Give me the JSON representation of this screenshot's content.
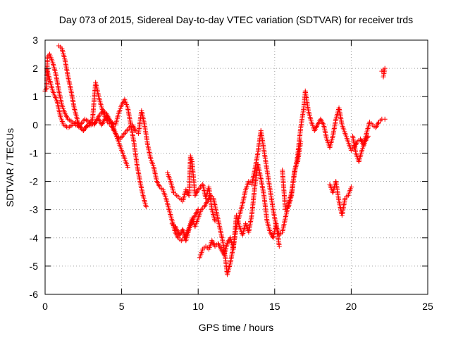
{
  "chart_data": {
    "type": "scatter",
    "title": "Day 073 of 2015, Sidereal Day-to-day VTEC variation (SDTVAR) for receiver trds",
    "xlabel": "GPS time / hours",
    "ylabel": "SDTVAR / TECUs",
    "xlim": [
      0,
      25
    ],
    "ylim": [
      -6,
      3
    ],
    "xticks": [
      0,
      5,
      10,
      15,
      20,
      25
    ],
    "yticks": [
      -6,
      -5,
      -4,
      -3,
      -2,
      -1,
      0,
      1,
      2,
      3
    ],
    "grid": true,
    "series": [
      {
        "name": "SDTVAR",
        "color": "#ff0000",
        "marker": "plus",
        "points": [
          [
            0.0,
            1.2
          ],
          [
            0.1,
            1.3
          ],
          [
            0.15,
            2.4
          ],
          [
            0.3,
            2.5
          ],
          [
            0.5,
            2.2
          ],
          [
            0.7,
            1.8
          ],
          [
            0.9,
            1.2
          ],
          [
            1.1,
            0.7
          ],
          [
            1.3,
            0.4
          ],
          [
            1.5,
            0.2
          ],
          [
            1.8,
            0.1
          ],
          [
            2.0,
            0.0
          ],
          [
            2.3,
            -0.1
          ],
          [
            2.5,
            -0.2
          ],
          [
            2.7,
            -0.05
          ],
          [
            3.0,
            0.0
          ],
          [
            3.3,
            0.1
          ],
          [
            3.5,
            0.2
          ],
          [
            3.7,
            0.0
          ],
          [
            4.0,
            0.3
          ],
          [
            4.3,
            0.1
          ],
          [
            4.6,
            0.0
          ],
          [
            4.8,
            0.4
          ],
          [
            5.0,
            0.7
          ],
          [
            5.2,
            0.9
          ],
          [
            5.4,
            0.6
          ],
          [
            5.6,
            0.0
          ],
          [
            5.8,
            -0.6
          ],
          [
            6.0,
            -1.4
          ],
          [
            6.2,
            -2.0
          ],
          [
            6.4,
            -2.5
          ],
          [
            6.6,
            -2.9
          ],
          [
            0.1,
            2.0
          ],
          [
            0.3,
            1.6
          ],
          [
            0.5,
            1.2
          ],
          [
            0.8,
            0.8
          ],
          [
            1.0,
            0.3
          ],
          [
            1.2,
            0.0
          ],
          [
            1.5,
            -0.1
          ],
          [
            1.8,
            0.0
          ],
          [
            2.0,
            0.1
          ],
          [
            2.3,
            0.0
          ],
          [
            2.6,
            0.2
          ],
          [
            2.9,
            0.1
          ],
          [
            3.2,
            0.0
          ],
          [
            3.5,
            0.3
          ],
          [
            3.8,
            0.5
          ],
          [
            4.0,
            0.4
          ],
          [
            4.2,
            0.2
          ],
          [
            4.4,
            0.0
          ],
          [
            4.6,
            -0.3
          ],
          [
            4.8,
            -0.6
          ],
          [
            5.0,
            -0.9
          ],
          [
            5.2,
            -1.2
          ],
          [
            5.4,
            -1.5
          ],
          [
            0.9,
            2.8
          ],
          [
            1.1,
            2.7
          ],
          [
            1.3,
            2.3
          ],
          [
            1.5,
            1.7
          ],
          [
            1.7,
            1.2
          ],
          [
            1.9,
            0.6
          ],
          [
            2.2,
            0.0
          ],
          [
            2.5,
            -0.2
          ],
          [
            2.8,
            0.0
          ],
          [
            3.1,
            0.2
          ],
          [
            3.3,
            1.5
          ],
          [
            3.5,
            1.0
          ],
          [
            3.7,
            0.6
          ],
          [
            3.9,
            0.3
          ],
          [
            4.1,
            0.1
          ],
          [
            4.3,
            0.0
          ],
          [
            4.5,
            -0.2
          ],
          [
            4.7,
            -0.4
          ],
          [
            4.9,
            -0.5
          ],
          [
            5.2,
            -0.3
          ],
          [
            5.5,
            -0.1
          ],
          [
            5.7,
            0.0
          ],
          [
            5.9,
            -0.2
          ],
          [
            6.1,
            -0.3
          ],
          [
            6.3,
            0.5
          ],
          [
            6.5,
            0.0
          ],
          [
            6.7,
            -0.7
          ],
          [
            6.9,
            -1.2
          ],
          [
            7.1,
            -1.5
          ],
          [
            7.3,
            -2.0
          ],
          [
            7.5,
            -2.2
          ],
          [
            7.7,
            -2.3
          ],
          [
            7.9,
            -2.6
          ],
          [
            8.1,
            -3.0
          ],
          [
            8.3,
            -3.4
          ],
          [
            8.5,
            -3.8
          ],
          [
            8.7,
            -4.0
          ],
          [
            8.9,
            -4.1
          ],
          [
            9.1,
            -4.0
          ],
          [
            9.3,
            -3.8
          ],
          [
            9.5,
            -3.5
          ],
          [
            9.6,
            -3.3
          ],
          [
            9.8,
            -3.6
          ],
          [
            10.0,
            -3.3
          ],
          [
            10.2,
            -3.0
          ],
          [
            10.4,
            -2.9
          ],
          [
            10.6,
            -2.7
          ],
          [
            10.8,
            -2.5
          ],
          [
            11.0,
            -2.6
          ],
          [
            11.2,
            -3.1
          ],
          [
            11.4,
            -3.6
          ],
          [
            11.6,
            -4.1
          ],
          [
            11.8,
            -4.8
          ],
          [
            11.9,
            -5.3
          ],
          [
            12.1,
            -4.9
          ],
          [
            12.3,
            -4.3
          ],
          [
            12.5,
            -3.6
          ],
          [
            12.7,
            -3.2
          ],
          [
            12.9,
            -2.8
          ],
          [
            13.1,
            -2.3
          ],
          [
            13.3,
            -2.0
          ],
          [
            13.5,
            -2.1
          ],
          [
            13.7,
            -1.6
          ],
          [
            13.9,
            -1.0
          ],
          [
            14.1,
            -0.2
          ],
          [
            14.3,
            -0.9
          ],
          [
            14.5,
            -1.6
          ],
          [
            14.7,
            -2.3
          ],
          [
            14.9,
            -3.0
          ],
          [
            15.1,
            -3.6
          ],
          [
            15.3,
            -3.9
          ],
          [
            15.5,
            -3.8
          ],
          [
            15.7,
            -3.3
          ],
          [
            15.9,
            -2.8
          ],
          [
            16.1,
            -2.4
          ],
          [
            16.3,
            -1.7
          ],
          [
            16.5,
            -1.1
          ],
          [
            16.7,
            -0.1
          ],
          [
            16.9,
            0.6
          ],
          [
            17.0,
            1.2
          ],
          [
            17.2,
            0.5
          ],
          [
            17.4,
            0.1
          ],
          [
            17.6,
            -0.2
          ],
          [
            17.8,
            0.0
          ],
          [
            18.0,
            0.2
          ],
          [
            18.2,
            0.0
          ],
          [
            18.4,
            -0.5
          ],
          [
            18.6,
            -0.8
          ],
          [
            18.8,
            -0.4
          ],
          [
            19.0,
            0.2
          ],
          [
            19.2,
            0.6
          ],
          [
            19.4,
            0.0
          ],
          [
            19.6,
            -0.3
          ],
          [
            19.8,
            -0.6
          ],
          [
            20.0,
            -0.9
          ],
          [
            20.2,
            -0.8
          ],
          [
            20.4,
            -0.6
          ],
          [
            20.6,
            -0.5
          ],
          [
            20.8,
            -0.7
          ],
          [
            21.0,
            -0.3
          ],
          [
            21.2,
            0.1
          ],
          [
            21.4,
            0.0
          ],
          [
            21.6,
            -0.1
          ],
          [
            21.8,
            0.1
          ],
          [
            22.0,
            0.2
          ],
          [
            22.2,
            0.2
          ],
          [
            8.0,
            -1.7
          ],
          [
            8.2,
            -2.0
          ],
          [
            8.4,
            -2.4
          ],
          [
            8.6,
            -2.5
          ],
          [
            8.8,
            -2.6
          ],
          [
            9.0,
            -2.7
          ],
          [
            9.2,
            -2.3
          ],
          [
            9.4,
            -2.5
          ],
          [
            9.5,
            -1.1
          ],
          [
            9.6,
            -1.3
          ],
          [
            9.8,
            -2.5
          ],
          [
            10.0,
            -2.3
          ],
          [
            10.3,
            -2.1
          ],
          [
            10.5,
            -2.6
          ],
          [
            10.7,
            -2.2
          ],
          [
            10.9,
            -3.0
          ],
          [
            11.1,
            -3.4
          ],
          [
            8.3,
            -3.5
          ],
          [
            8.5,
            -3.6
          ],
          [
            8.8,
            -3.9
          ],
          [
            9.0,
            -3.7
          ],
          [
            9.2,
            -4.1
          ],
          [
            9.4,
            -3.7
          ],
          [
            9.6,
            -3.4
          ],
          [
            9.8,
            -3.2
          ],
          [
            10.0,
            -3.0
          ],
          [
            10.1,
            -4.7
          ],
          [
            10.3,
            -4.4
          ],
          [
            10.5,
            -4.3
          ],
          [
            10.7,
            -4.4
          ],
          [
            10.9,
            -4.1
          ],
          [
            11.1,
            -4.3
          ],
          [
            11.3,
            -4.2
          ],
          [
            11.5,
            -4.4
          ],
          [
            11.7,
            -4.6
          ],
          [
            11.9,
            -4.2
          ],
          [
            12.1,
            -4.0
          ],
          [
            12.3,
            -4.4
          ],
          [
            12.5,
            -3.2
          ],
          [
            12.7,
            -3.6
          ],
          [
            12.9,
            -3.9
          ],
          [
            13.1,
            -3.5
          ],
          [
            13.3,
            -3.8
          ],
          [
            13.5,
            -3.2
          ],
          [
            13.7,
            -2.2
          ],
          [
            13.9,
            -1.4
          ],
          [
            14.1,
            -1.9
          ],
          [
            14.3,
            -2.5
          ],
          [
            14.5,
            -3.4
          ],
          [
            14.7,
            -3.8
          ],
          [
            14.9,
            -4.0
          ],
          [
            15.1,
            -3.5
          ],
          [
            15.3,
            -4.3
          ],
          [
            15.5,
            -1.6
          ],
          [
            15.7,
            -3.0
          ],
          [
            15.9,
            -2.9
          ],
          [
            16.1,
            -2.5
          ],
          [
            16.3,
            -1.6
          ],
          [
            16.5,
            -1.3
          ],
          [
            16.7,
            -0.6
          ],
          [
            18.6,
            -2.1
          ],
          [
            18.8,
            -2.4
          ],
          [
            19.0,
            -2.0
          ],
          [
            19.2,
            -2.7
          ],
          [
            19.4,
            -3.2
          ],
          [
            19.6,
            -2.6
          ],
          [
            19.8,
            -2.5
          ],
          [
            20.0,
            -2.2
          ],
          [
            20.1,
            -0.4
          ],
          [
            20.3,
            -1.0
          ],
          [
            20.5,
            -1.3
          ],
          [
            20.7,
            -0.9
          ],
          [
            20.9,
            -0.6
          ],
          [
            21.1,
            -0.4
          ],
          [
            22.0,
            1.9
          ],
          [
            22.2,
            2.0
          ],
          [
            22.1,
            1.7
          ]
        ]
      }
    ]
  }
}
